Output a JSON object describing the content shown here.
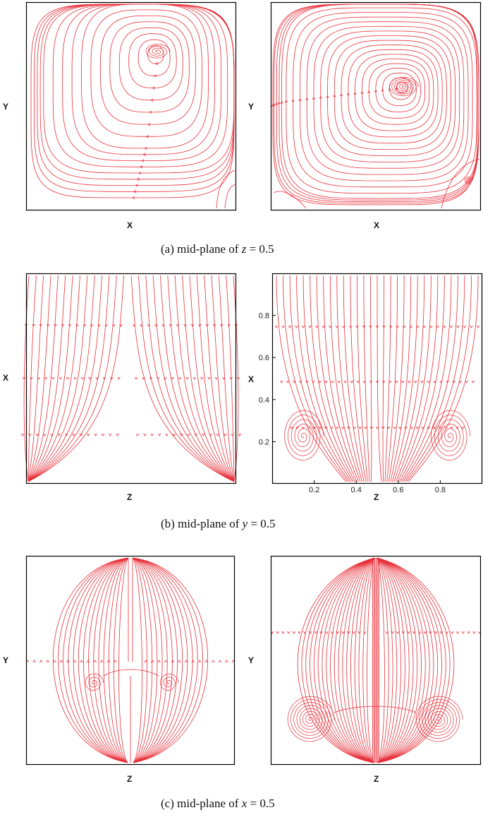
{
  "captions": {
    "a": {
      "prefix": "(a)  mid-plane of  ",
      "var": "z",
      "suffix": " = 0.5"
    },
    "b": {
      "prefix": "(b) mid-plane of  ",
      "var": "y",
      "suffix": " = 0.5"
    },
    "c": {
      "prefix": "(c)  mid-plane of  ",
      "var": "x",
      "suffix": " = 0.5"
    }
  },
  "panels": {
    "a1": {
      "xlabel": "X",
      "ylabel": "Y"
    },
    "a2": {
      "xlabel": "X",
      "ylabel": "Y"
    },
    "b1": {
      "xlabel": "Z",
      "ylabel": "X"
    },
    "b2": {
      "xlabel": "Z",
      "ylabel": "X",
      "xticks": [
        "0.2",
        "0.4",
        "0.6",
        "0.8"
      ],
      "yticks": [
        "0.2",
        "0.4",
        "0.6",
        "0.8"
      ]
    },
    "c1": {
      "xlabel": "Z",
      "ylabel": "Y"
    },
    "c2": {
      "xlabel": "Z",
      "ylabel": "Y"
    }
  },
  "colors": {
    "streamline": "#e8303a",
    "frame": "#000000"
  }
}
